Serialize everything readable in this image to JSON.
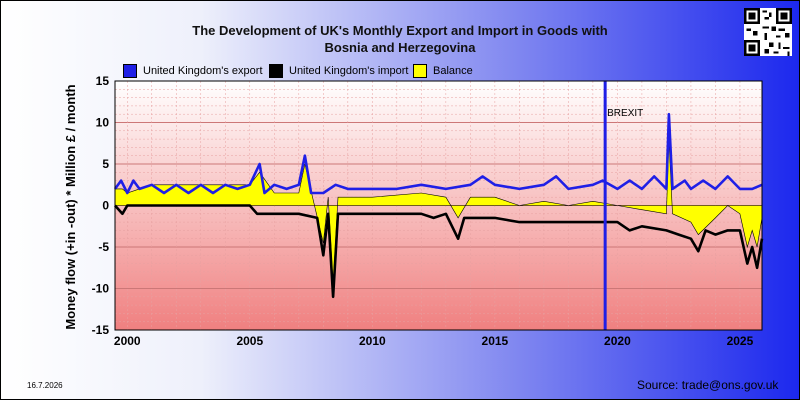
{
  "header": {
    "title_line1": "The Development of UK's Monthly Export and Import in Goods with",
    "title_line2": "Bosnia and Herzegovina"
  },
  "footer": {
    "date": "16.7.2026",
    "source": "Source: trade@ons.gov.uk"
  },
  "colors": {
    "export": "#1f1fe6",
    "import": "#000000",
    "balance": "#ffff00",
    "brexit_line": "#1f1fe6"
  },
  "chart_data": {
    "type": "line",
    "title": "The Development of UK's Monthly Export and Import in Goods with Bosnia and Herzegovina",
    "xlabel": "",
    "ylabel": "Money flow (+in -out) * Million £ / month",
    "xlim": [
      1999.5,
      2025.9
    ],
    "ylim": [
      -15,
      15
    ],
    "yticks": [
      15,
      10,
      5,
      0,
      -5,
      -10,
      -15
    ],
    "xticks": [
      2000,
      2005,
      2010,
      2015,
      2020,
      2025
    ],
    "grid": true,
    "legend_position": "top",
    "legend": [
      "United Kingdom's export",
      "United Kingdom's import",
      "Balance"
    ],
    "annotations": [
      {
        "label": "BREXIT",
        "x": 2019.5
      }
    ],
    "series": [
      {
        "name": "United Kingdom's export",
        "points": [
          [
            1999.5,
            2.0
          ],
          [
            1999.75,
            3.0
          ],
          [
            2000.0,
            1.5
          ],
          [
            2000.25,
            3.0
          ],
          [
            2000.5,
            2.0
          ],
          [
            2001.0,
            2.5
          ],
          [
            2001.5,
            1.5
          ],
          [
            2002.0,
            2.5
          ],
          [
            2002.5,
            1.5
          ],
          [
            2003.0,
            2.5
          ],
          [
            2003.5,
            1.5
          ],
          [
            2004.0,
            2.5
          ],
          [
            2004.5,
            2.0
          ],
          [
            2005.0,
            2.5
          ],
          [
            2005.4,
            5.0
          ],
          [
            2005.6,
            1.5
          ],
          [
            2006.0,
            2.5
          ],
          [
            2006.5,
            2.0
          ],
          [
            2007.0,
            2.5
          ],
          [
            2007.25,
            6.0
          ],
          [
            2007.5,
            1.5
          ],
          [
            2008.0,
            1.5
          ],
          [
            2008.5,
            2.5
          ],
          [
            2009.0,
            2.0
          ],
          [
            2010.0,
            2.0
          ],
          [
            2011.0,
            2.0
          ],
          [
            2012.0,
            2.5
          ],
          [
            2013.0,
            2.0
          ],
          [
            2014.0,
            2.5
          ],
          [
            2014.5,
            3.5
          ],
          [
            2015.0,
            2.5
          ],
          [
            2016.0,
            2.0
          ],
          [
            2017.0,
            2.5
          ],
          [
            2017.5,
            3.5
          ],
          [
            2018.0,
            2.0
          ],
          [
            2019.0,
            2.5
          ],
          [
            2019.4,
            3.0
          ],
          [
            2020.0,
            2.0
          ],
          [
            2020.5,
            3.0
          ],
          [
            2021.0,
            2.0
          ],
          [
            2021.5,
            3.5
          ],
          [
            2022.0,
            2.0
          ],
          [
            2022.1,
            11.0
          ],
          [
            2022.25,
            2.0
          ],
          [
            2022.75,
            3.0
          ],
          [
            2023.0,
            2.0
          ],
          [
            2023.5,
            3.0
          ],
          [
            2024.0,
            2.0
          ],
          [
            2024.5,
            3.5
          ],
          [
            2025.0,
            2.0
          ],
          [
            2025.5,
            2.0
          ],
          [
            2025.9,
            2.5
          ]
        ]
      },
      {
        "name": "United Kingdom's import",
        "points": [
          [
            1999.5,
            0.0
          ],
          [
            1999.8,
            -1.0
          ],
          [
            2000.0,
            0.0
          ],
          [
            2001.0,
            0.0
          ],
          [
            2002.0,
            0.0
          ],
          [
            2003.0,
            0.0
          ],
          [
            2004.0,
            0.0
          ],
          [
            2005.0,
            0.0
          ],
          [
            2005.3,
            -1.0
          ],
          [
            2006.0,
            -1.0
          ],
          [
            2007.0,
            -1.0
          ],
          [
            2007.75,
            -1.5
          ],
          [
            2008.0,
            -6.0
          ],
          [
            2008.2,
            -1.0
          ],
          [
            2008.4,
            -11.0
          ],
          [
            2008.6,
            -1.0
          ],
          [
            2010.0,
            -1.0
          ],
          [
            2012.0,
            -1.0
          ],
          [
            2012.5,
            -1.5
          ],
          [
            2013.0,
            -1.0
          ],
          [
            2013.5,
            -4.0
          ],
          [
            2013.75,
            -1.5
          ],
          [
            2015.0,
            -1.5
          ],
          [
            2016.0,
            -2.0
          ],
          [
            2017.0,
            -2.0
          ],
          [
            2018.0,
            -2.0
          ],
          [
            2019.0,
            -2.0
          ],
          [
            2020.0,
            -2.0
          ],
          [
            2020.5,
            -3.0
          ],
          [
            2021.0,
            -2.5
          ],
          [
            2022.0,
            -3.0
          ],
          [
            2022.5,
            -3.5
          ],
          [
            2023.0,
            -4.0
          ],
          [
            2023.3,
            -5.5
          ],
          [
            2023.6,
            -3.0
          ],
          [
            2024.0,
            -3.5
          ],
          [
            2024.5,
            -3.0
          ],
          [
            2025.0,
            -3.0
          ],
          [
            2025.3,
            -7.0
          ],
          [
            2025.5,
            -5.0
          ],
          [
            2025.7,
            -7.5
          ],
          [
            2025.9,
            -4.0
          ]
        ]
      },
      {
        "name": "Balance",
        "points": [
          [
            1999.5,
            2.0
          ],
          [
            1999.8,
            2.0
          ],
          [
            2000.0,
            1.5
          ],
          [
            2001.0,
            2.5
          ],
          [
            2002.0,
            2.5
          ],
          [
            2003.0,
            2.5
          ],
          [
            2004.0,
            2.5
          ],
          [
            2005.0,
            2.5
          ],
          [
            2005.4,
            4.0
          ],
          [
            2006.0,
            1.5
          ],
          [
            2007.0,
            1.5
          ],
          [
            2007.25,
            5.0
          ],
          [
            2007.6,
            0.5
          ],
          [
            2008.0,
            -4.5
          ],
          [
            2008.2,
            1.0
          ],
          [
            2008.4,
            -9.5
          ],
          [
            2008.6,
            1.0
          ],
          [
            2010.0,
            1.0
          ],
          [
            2012.0,
            1.5
          ],
          [
            2013.0,
            1.0
          ],
          [
            2013.5,
            -1.5
          ],
          [
            2014.0,
            1.0
          ],
          [
            2015.0,
            1.0
          ],
          [
            2016.0,
            0.0
          ],
          [
            2017.0,
            0.5
          ],
          [
            2018.0,
            0.0
          ],
          [
            2019.0,
            0.5
          ],
          [
            2020.0,
            0.0
          ],
          [
            2021.0,
            -0.5
          ],
          [
            2022.0,
            -1.0
          ],
          [
            2022.1,
            8.0
          ],
          [
            2022.25,
            -1.0
          ],
          [
            2023.0,
            -2.0
          ],
          [
            2023.3,
            -3.5
          ],
          [
            2024.0,
            -1.5
          ],
          [
            2024.5,
            0.0
          ],
          [
            2025.0,
            -1.0
          ],
          [
            2025.3,
            -5.0
          ],
          [
            2025.5,
            -3.0
          ],
          [
            2025.7,
            -5.0
          ],
          [
            2025.9,
            -1.5
          ]
        ]
      }
    ]
  }
}
